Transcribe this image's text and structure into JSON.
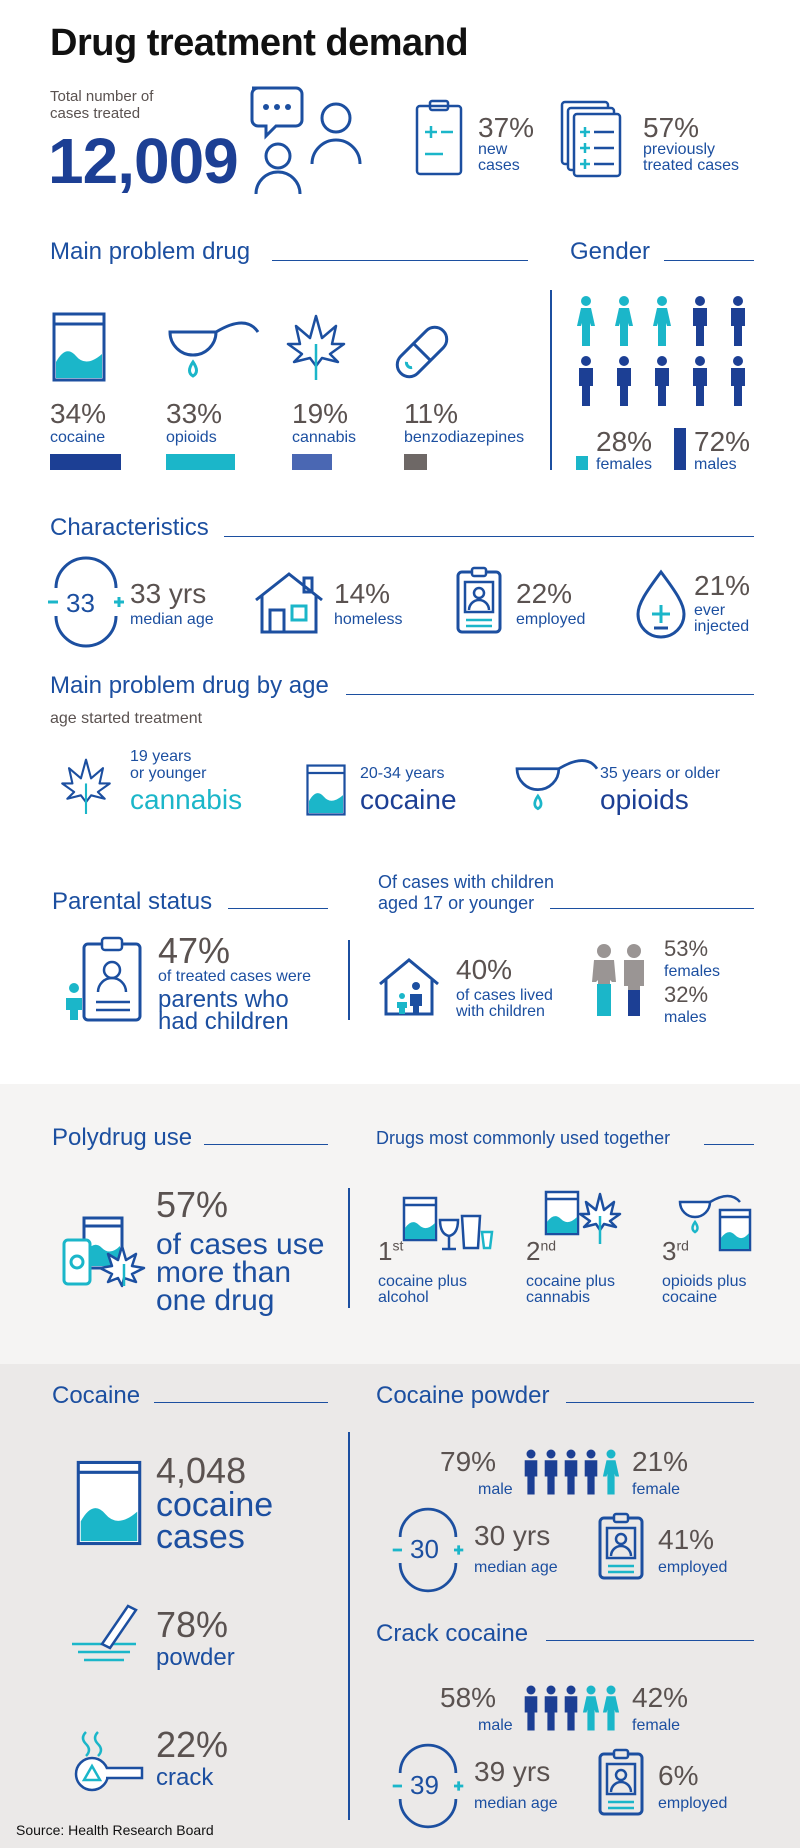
{
  "title": "Drug treatment demand",
  "total": {
    "label": "Total number of cases treated",
    "label_l1": "Total number of",
    "label_l2": "cases treated",
    "value": "12,009"
  },
  "new_cases": {
    "pct": "37%",
    "l1": "new",
    "l2": "cases"
  },
  "prev_cases": {
    "pct": "57%",
    "l1": "previously",
    "l2": "treated cases"
  },
  "main_drug": {
    "heading": "Main problem drug",
    "items": [
      {
        "pct": "34%",
        "label": "cocaine",
        "value": 34,
        "color": "#1c3f94"
      },
      {
        "pct": "33%",
        "label": "opioids",
        "value": 33,
        "color": "#1bb6c9"
      },
      {
        "pct": "19%",
        "label": "cannabis",
        "value": 19,
        "color": "#4a67b3"
      },
      {
        "pct": "11%",
        "label": "benzodiazepines",
        "value": 11,
        "color": "#6e6866"
      }
    ]
  },
  "gender": {
    "heading": "Gender",
    "females_pct": "28%",
    "females": "females",
    "males_pct": "72%",
    "males": "males"
  },
  "characteristics": {
    "heading": "Characteristics",
    "age_num": "33",
    "age_val": "33 yrs",
    "age_lbl": "median age",
    "homeless_pct": "14%",
    "homeless_lbl": "homeless",
    "employed_pct": "22%",
    "employed_lbl": "employed",
    "injected_pct": "21%",
    "injected_l1": "ever",
    "injected_l2": "injected"
  },
  "by_age": {
    "heading": "Main problem drug by age",
    "sub": "age started treatment",
    "g1_l1": "19 years",
    "g1_l2": "or younger",
    "g1_drug": "cannabis",
    "g2_l1": "20-34 years",
    "g2_drug": "cocaine",
    "g3_l1": "35 years or older",
    "g3_drug": "opioids"
  },
  "parental": {
    "heading": "Parental status",
    "pct": "47%",
    "l1": "of treated cases were",
    "l2": "parents who",
    "l3": "had children",
    "children_heading_l1": "Of cases with children",
    "children_heading_l2": "aged 17 or younger",
    "lived_pct": "40%",
    "lived_l1": "of cases lived",
    "lived_l2": "with children",
    "fem_pct": "53%",
    "fem_lbl": "females",
    "male_pct": "32%",
    "male_lbl": "males"
  },
  "polydrug": {
    "heading": "Polydrug use",
    "pct": "57%",
    "l1": "of cases use",
    "l2": "more than",
    "l3": "one drug",
    "together_heading": "Drugs most commonly used together",
    "r1": "1",
    "r1s": "st",
    "r1_l1": "cocaine plus",
    "r1_l2": "alcohol",
    "r2": "2",
    "r2s": "nd",
    "r2_l1": "cocaine plus",
    "r2_l2": "cannabis",
    "r3": "3",
    "r3s": "rd",
    "r3_l1": "opioids plus",
    "r3_l2": "cocaine"
  },
  "cocaine": {
    "heading": "Cocaine",
    "num": "4,048",
    "l1": "cocaine",
    "l2": "cases",
    "powder_pct": "78%",
    "powder_lbl": "powder",
    "crack_pct": "22%",
    "crack_lbl": "crack"
  },
  "powder": {
    "heading": "Cocaine powder",
    "male_pct": "79%",
    "male_lbl": "male",
    "female_pct": "21%",
    "female_lbl": "female",
    "age_num": "30",
    "age_val": "30 yrs",
    "age_lbl": "median age",
    "emp_pct": "41%",
    "emp_lbl": "employed"
  },
  "crack": {
    "heading": "Crack cocaine",
    "male_pct": "58%",
    "male_lbl": "male",
    "female_pct": "42%",
    "female_lbl": "female",
    "age_num": "39",
    "age_val": "39 yrs",
    "age_lbl": "median age",
    "emp_pct": "6%",
    "emp_lbl": "employed"
  },
  "source": "Source: Health Research Board"
}
